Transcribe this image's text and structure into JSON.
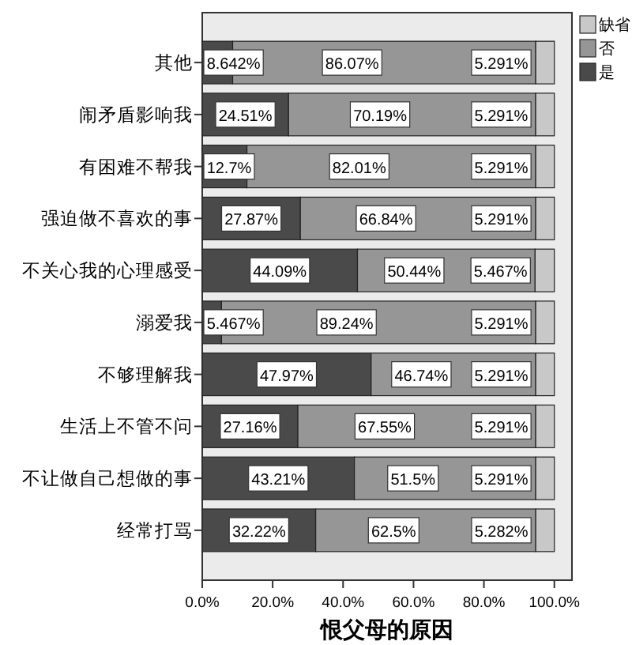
{
  "chart_data": {
    "type": "bar",
    "orientation": "horizontal",
    "stacked": true,
    "xlabel": "恨父母的原因",
    "categories": [
      "其他",
      "闹矛盾影响我",
      "有困难不帮我",
      "强迫做不喜欢的事",
      "不关心我的心理感受",
      "溺爱我",
      "不够理解我",
      "生活上不管不问",
      "不让做自己想做的事",
      "经常打骂"
    ],
    "series": [
      {
        "name": "是",
        "color": "#4a4a4a",
        "values": [
          8.642,
          24.51,
          12.7,
          27.87,
          44.09,
          5.467,
          47.97,
          27.16,
          43.21,
          32.22
        ],
        "value_labels": [
          "8.642%",
          "24.51%",
          "12.7%",
          "27.87%",
          "44.09%",
          "5.467%",
          "47.97%",
          "27.16%",
          "43.21%",
          "32.22%"
        ]
      },
      {
        "name": "否",
        "color": "#969696",
        "values": [
          86.07,
          70.19,
          82.01,
          66.84,
          50.44,
          89.24,
          46.74,
          67.55,
          51.5,
          62.5
        ],
        "value_labels": [
          "86.07%",
          "70.19%",
          "82.01%",
          "66.84%",
          "50.44%",
          "89.24%",
          "46.74%",
          "67.55%",
          "51.5%",
          "62.5%"
        ]
      },
      {
        "name": "缺省",
        "color": "#c8c8c8",
        "values": [
          5.291,
          5.291,
          5.291,
          5.291,
          5.467,
          5.291,
          5.291,
          5.291,
          5.291,
          5.282
        ],
        "value_labels": [
          "5.291%",
          "5.291%",
          "5.291%",
          "5.291%",
          "5.467%",
          "5.291%",
          "5.291%",
          "5.291%",
          "5.291%",
          "5.282%"
        ]
      }
    ],
    "xlim": [
      0,
      105
    ],
    "xticks": [
      {
        "value": 0,
        "label": "0.0%"
      },
      {
        "value": 20,
        "label": "20.0%"
      },
      {
        "value": 40,
        "label": "40.0%"
      },
      {
        "value": 60,
        "label": "60.0%"
      },
      {
        "value": 80,
        "label": "80.0%"
      },
      {
        "value": 100,
        "label": "100.0%"
      }
    ],
    "legend": "top right",
    "grid": false
  }
}
